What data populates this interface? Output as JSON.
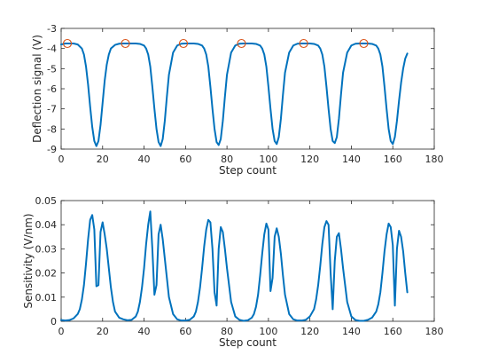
{
  "colors": {
    "line": "#0072BD",
    "marker": "#D95319",
    "axis": "#262626"
  },
  "chart_data": [
    {
      "type": "line",
      "xlabel": "Step count",
      "ylabel": "Deflection signal (V)",
      "xlim": [
        0,
        180
      ],
      "ylim": [
        -9,
        -3
      ],
      "xticks": [
        "0",
        "20",
        "40",
        "60",
        "80",
        "100",
        "120",
        "140",
        "160",
        "180"
      ],
      "yticks": [
        "-9",
        "-8",
        "-7",
        "-6",
        "-5",
        "-4",
        "-3"
      ],
      "grid": false,
      "series": [
        {
          "x": [
            0,
            2,
            4,
            6,
            8,
            10,
            11,
            12,
            13,
            14,
            15,
            16,
            17,
            18,
            19,
            20,
            21,
            22,
            23,
            24,
            26,
            28,
            30,
            32,
            34,
            36,
            38,
            40,
            41,
            42,
            43,
            44,
            45,
            46,
            47,
            48,
            49,
            50,
            51,
            52,
            54,
            56,
            58,
            60,
            62,
            64,
            66,
            68,
            69,
            70,
            71,
            72,
            73,
            74,
            75,
            76,
            77,
            78,
            79,
            80,
            82,
            84,
            86,
            88,
            90,
            92,
            94,
            96,
            97,
            98,
            99,
            100,
            101,
            102,
            103,
            104,
            105,
            106,
            107,
            108,
            110,
            112,
            114,
            116,
            118,
            120,
            122,
            124,
            125,
            126,
            127,
            128,
            129,
            130,
            131,
            132,
            133,
            134,
            135,
            136,
            138,
            140,
            142,
            144,
            146,
            148,
            150,
            152,
            153,
            154,
            155,
            156,
            157,
            158,
            159,
            160,
            161,
            162,
            163,
            164,
            165,
            166,
            167
          ],
          "y": [
            -3.8,
            -3.75,
            -3.75,
            -3.75,
            -3.8,
            -4.0,
            -4.3,
            -4.9,
            -5.8,
            -6.9,
            -7.9,
            -8.6,
            -8.85,
            -8.6,
            -7.8,
            -6.7,
            -5.6,
            -4.8,
            -4.3,
            -4.0,
            -3.82,
            -3.76,
            -3.75,
            -3.75,
            -3.75,
            -3.75,
            -3.77,
            -3.85,
            -4.0,
            -4.3,
            -4.9,
            -5.9,
            -7.0,
            -8.0,
            -8.65,
            -8.85,
            -8.5,
            -7.6,
            -6.4,
            -5.3,
            -4.2,
            -3.85,
            -3.76,
            -3.75,
            -3.75,
            -3.75,
            -3.77,
            -3.85,
            -4.0,
            -4.3,
            -4.9,
            -5.9,
            -7.0,
            -8.0,
            -8.65,
            -8.8,
            -8.5,
            -7.6,
            -6.4,
            -5.3,
            -4.2,
            -3.85,
            -3.76,
            -3.75,
            -3.75,
            -3.75,
            -3.77,
            -3.85,
            -4.0,
            -4.3,
            -4.9,
            -5.9,
            -7.0,
            -8.0,
            -8.6,
            -8.75,
            -8.4,
            -7.5,
            -6.3,
            -5.2,
            -4.2,
            -3.85,
            -3.76,
            -3.75,
            -3.75,
            -3.75,
            -3.77,
            -3.85,
            -4.0,
            -4.3,
            -4.9,
            -5.9,
            -7.0,
            -8.0,
            -8.6,
            -8.7,
            -8.4,
            -7.5,
            -6.3,
            -5.2,
            -4.2,
            -3.85,
            -3.76,
            -3.75,
            -3.75,
            -3.75,
            -3.77,
            -3.85,
            -4.0,
            -4.3,
            -4.9,
            -5.9,
            -7.0,
            -8.0,
            -8.6,
            -8.75,
            -8.4,
            -7.6,
            -6.6,
            -5.7,
            -5.0,
            -4.5,
            -4.25
          ]
        }
      ],
      "markers": {
        "x": [
          3,
          31,
          59,
          87,
          117,
          146
        ],
        "y": [
          -3.75,
          -3.75,
          -3.75,
          -3.75,
          -3.75,
          -3.75
        ]
      }
    },
    {
      "type": "line",
      "xlabel": "Step count",
      "ylabel": "Sensitivity (V/nm)",
      "xlim": [
        0,
        180
      ],
      "ylim": [
        0,
        0.05
      ],
      "xticks": [
        "0",
        "20",
        "40",
        "60",
        "80",
        "100",
        "120",
        "140",
        "160",
        "180"
      ],
      "yticks": [
        "0",
        "0.01",
        "0.02",
        "0.03",
        "0.04",
        "0.05"
      ],
      "grid": false,
      "series": [
        {
          "x": [
            0,
            2,
            4,
            6,
            8,
            9,
            10,
            11,
            12,
            13,
            14,
            15,
            16,
            17,
            18,
            19,
            20,
            21,
            22,
            23,
            24,
            25,
            26,
            28,
            30,
            32,
            34,
            36,
            37,
            38,
            39,
            40,
            41,
            42,
            43,
            44,
            45,
            46,
            47,
            48,
            49,
            50,
            51,
            52,
            54,
            56,
            58,
            60,
            62,
            64,
            65,
            66,
            67,
            68,
            69,
            70,
            71,
            72,
            73,
            74,
            75,
            76,
            77,
            78,
            79,
            80,
            82,
            84,
            86,
            88,
            90,
            92,
            93,
            94,
            95,
            96,
            97,
            98,
            99,
            100,
            101,
            102,
            103,
            104,
            105,
            106,
            107,
            108,
            110,
            112,
            114,
            116,
            118,
            120,
            122,
            123,
            124,
            125,
            126,
            127,
            128,
            129,
            130,
            131,
            132,
            133,
            134,
            135,
            136,
            137,
            138,
            140,
            142,
            144,
            146,
            148,
            150,
            152,
            153,
            154,
            155,
            156,
            157,
            158,
            159,
            160,
            161,
            162,
            163,
            164,
            165,
            166,
            167
          ],
          "y": [
            0.0005,
            0.0003,
            0.0005,
            0.0012,
            0.003,
            0.005,
            0.009,
            0.015,
            0.024,
            0.034,
            0.042,
            0.044,
            0.038,
            0.0145,
            0.015,
            0.037,
            0.041,
            0.036,
            0.03,
            0.022,
            0.014,
            0.008,
            0.004,
            0.0015,
            0.0008,
            0.0004,
            0.0006,
            0.002,
            0.004,
            0.008,
            0.014,
            0.022,
            0.032,
            0.04,
            0.0455,
            0.03,
            0.011,
            0.015,
            0.036,
            0.04,
            0.034,
            0.026,
            0.018,
            0.01,
            0.003,
            0.0008,
            0.0003,
            0.0003,
            0.0006,
            0.002,
            0.004,
            0.008,
            0.014,
            0.022,
            0.031,
            0.038,
            0.042,
            0.041,
            0.03,
            0.012,
            0.0065,
            0.03,
            0.039,
            0.037,
            0.03,
            0.022,
            0.008,
            0.002,
            0.0006,
            0.0002,
            0.0004,
            0.0015,
            0.003,
            0.006,
            0.011,
            0.019,
            0.028,
            0.036,
            0.0405,
            0.038,
            0.0125,
            0.018,
            0.035,
            0.0385,
            0.035,
            0.028,
            0.019,
            0.011,
            0.003,
            0.0008,
            0.0003,
            0.0003,
            0.0006,
            0.002,
            0.005,
            0.009,
            0.015,
            0.023,
            0.032,
            0.039,
            0.0415,
            0.04,
            0.02,
            0.005,
            0.025,
            0.035,
            0.0365,
            0.03,
            0.022,
            0.015,
            0.008,
            0.002,
            0.0005,
            0.0002,
            0.0002,
            0.0006,
            0.0015,
            0.004,
            0.007,
            0.012,
            0.02,
            0.029,
            0.036,
            0.0405,
            0.039,
            0.0315,
            0.0065,
            0.03,
            0.0375,
            0.035,
            0.029,
            0.02,
            0.012
          ]
        }
      ]
    }
  ]
}
